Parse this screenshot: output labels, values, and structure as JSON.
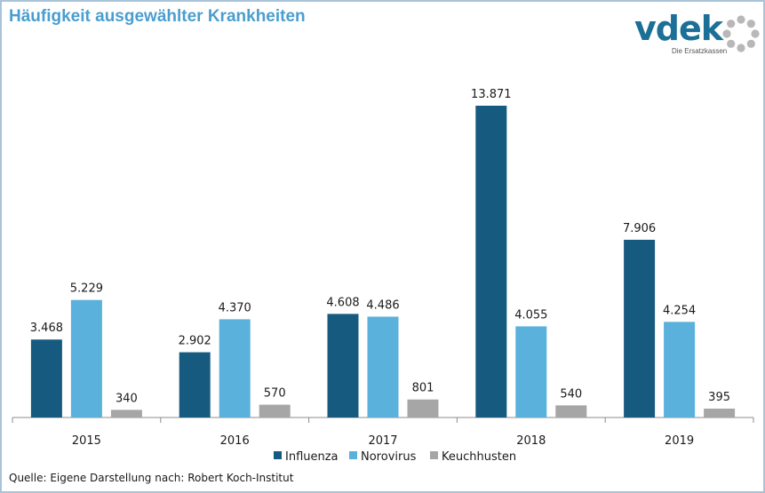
{
  "title": "Häufigkeit ausgewählter Krankheiten",
  "logo": {
    "word": "vdek",
    "tagline": "Die Ersatzkassen",
    "icon": "dotted-ring-icon"
  },
  "source": "Quelle: Eigene Darstellung nach: Robert Koch-Institut",
  "colors": {
    "title": "#4a9ecf",
    "logo": "#1c6f96"
  },
  "chart_data": {
    "type": "bar",
    "categories": [
      "2015",
      "2016",
      "2017",
      "2018",
      "2019"
    ],
    "series": [
      {
        "name": "Influenza",
        "color": "#175a80",
        "values": [
          3468,
          2902,
          4608,
          13871,
          7906
        ],
        "labels": [
          "3.468",
          "2.902",
          "4.608",
          "13.871",
          "7.906"
        ]
      },
      {
        "name": "Norovirus",
        "color": "#5ab1dc",
        "values": [
          5229,
          4370,
          4486,
          4055,
          4254
        ],
        "labels": [
          "5.229",
          "4.370",
          "4.486",
          "4.055",
          "4.254"
        ]
      },
      {
        "name": "Keuchhusten",
        "color": "#a6a6a6",
        "values": [
          340,
          570,
          801,
          540,
          395
        ],
        "labels": [
          "340",
          "570",
          "801",
          "540",
          "395"
        ]
      }
    ],
    "ylim": [
      0,
      13871
    ],
    "legend": "bottom-center",
    "grid": false
  }
}
